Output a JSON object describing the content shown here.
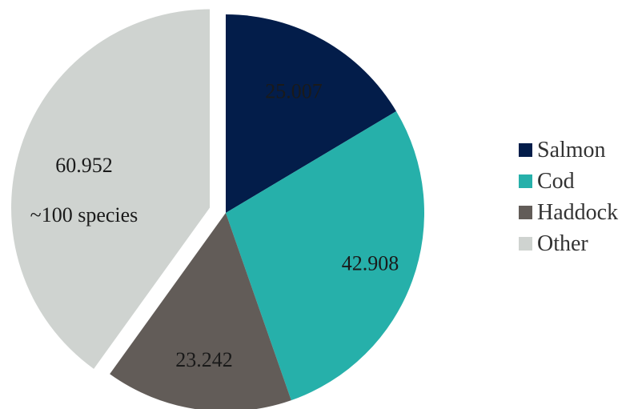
{
  "chart_data": {
    "type": "pie",
    "title": "",
    "categories": [
      "Salmon",
      "Cod",
      "Haddock",
      "Other"
    ],
    "values": [
      25.007,
      42.908,
      23.242,
      60.952
    ],
    "value_labels": [
      "25.007",
      "42.908",
      "23.242",
      "60.952"
    ],
    "colors": [
      "#031d4a",
      "#26b0aa",
      "#625c58",
      "#cfd3d0"
    ],
    "exploded_slice": "Other",
    "annotations": [
      {
        "slice": "Other",
        "text": "~100 species"
      }
    ],
    "legend": {
      "placement": "right",
      "entries": [
        "Salmon",
        "Cod",
        "Haddock",
        "Other"
      ]
    }
  }
}
